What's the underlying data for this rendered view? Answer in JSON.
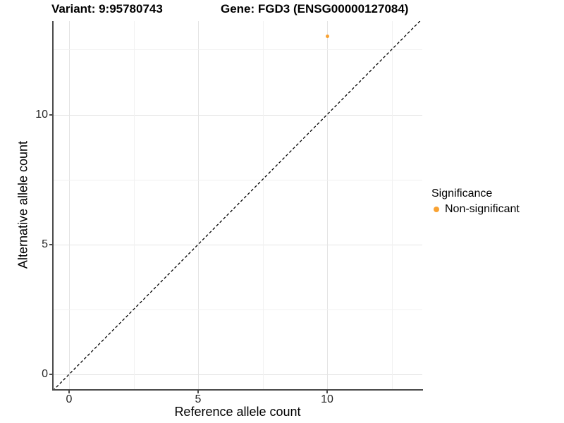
{
  "title": {
    "left": "Variant: 9:95780743",
    "right": "Gene: FGD3 (ENSG00000127084)"
  },
  "chart_data": {
    "type": "scatter",
    "xlabel": "Reference allele count",
    "ylabel": "Alternative allele count",
    "xlim": [
      -0.65,
      13.7
    ],
    "ylim": [
      -0.6,
      13.6
    ],
    "x_ticks": [
      0,
      5,
      10
    ],
    "y_ticks": [
      0,
      5,
      10
    ],
    "x_minor_ticks": [
      2.5,
      7.5,
      12.5
    ],
    "y_minor_ticks": [
      2.5,
      7.5,
      12.5
    ],
    "grid": true,
    "points": [
      {
        "x": 10,
        "y": 13,
        "series": "Non-significant"
      }
    ],
    "identity_line": {
      "slope": 1,
      "intercept": 0,
      "style": "dashed",
      "color": "#000000"
    },
    "legend": {
      "title": "Significance",
      "position": "right",
      "items": [
        {
          "label": "Non-significant",
          "color": "#F9A232"
        }
      ]
    }
  },
  "colors": {
    "point_orange": "#F9A232",
    "axis_line": "#4a4a4a",
    "grid_major": "#e4e4e4",
    "grid_minor": "#f1f1f1"
  }
}
